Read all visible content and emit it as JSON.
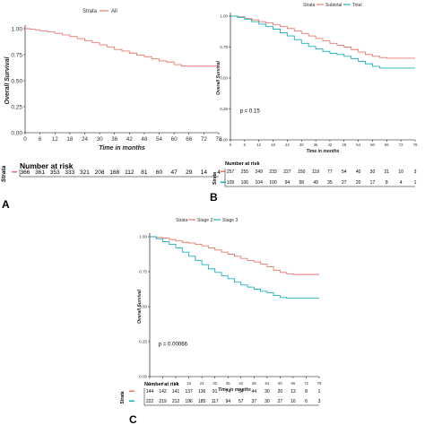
{
  "chart_data": [
    {
      "type": "line",
      "panel_label": "A",
      "ylabel": "Overall Survival",
      "xlabel": "Time in months",
      "legend_title": "Strata",
      "legend_placement": "top",
      "x_ticks": [
        0,
        6,
        12,
        18,
        24,
        30,
        36,
        42,
        48,
        54,
        60,
        66,
        72,
        78
      ],
      "y_ticks": [
        "0.00",
        "0.25",
        "0.50",
        "0.75",
        "1.00"
      ],
      "xlim": [
        0,
        78
      ],
      "ylim": [
        0,
        1
      ],
      "grid": false,
      "series": [
        {
          "name": "All",
          "color": "#e8776f",
          "points": [
            [
              0,
              1.0
            ],
            [
              2,
              0.995
            ],
            [
              4,
              0.99
            ],
            [
              6,
              0.98
            ],
            [
              9,
              0.97
            ],
            [
              12,
              0.955
            ],
            [
              15,
              0.94
            ],
            [
              18,
              0.925
            ],
            [
              21,
              0.905
            ],
            [
              24,
              0.885
            ],
            [
              27,
              0.865
            ],
            [
              30,
              0.845
            ],
            [
              33,
              0.825
            ],
            [
              36,
              0.8
            ],
            [
              39,
              0.785
            ],
            [
              42,
              0.765
            ],
            [
              45,
              0.745
            ],
            [
              48,
              0.73
            ],
            [
              51,
              0.71
            ],
            [
              54,
              0.69
            ],
            [
              57,
              0.68
            ],
            [
              60,
              0.655
            ],
            [
              63,
              0.64
            ],
            [
              66,
              0.64
            ],
            [
              72,
              0.64
            ],
            [
              78,
              0.64
            ]
          ]
        }
      ],
      "risk_table": {
        "title": "Number at risk",
        "strata_label": "Strata",
        "rows": [
          {
            "color": "#e8776f",
            "values": [
              "366",
              "361",
              "353",
              "333",
              "321",
              "208",
              "168",
              "112",
              "81",
              "60",
              "47",
              "29",
              "14",
              "4"
            ]
          }
        ]
      }
    },
    {
      "type": "line",
      "panel_label": "B",
      "ylabel": "Overall Survival",
      "xlabel": "Time in months",
      "legend_title": "Strata",
      "legend_placement": "top",
      "annotation": "p = 0.15",
      "x_ticks": [
        0,
        6,
        12,
        18,
        24,
        30,
        36,
        42,
        48,
        54,
        60,
        66,
        72,
        78
      ],
      "y_ticks": [
        "0.00",
        "0.25",
        "0.50",
        "0.75",
        "1.00"
      ],
      "xlim": [
        0,
        78
      ],
      "ylim": [
        0,
        1
      ],
      "grid": false,
      "series": [
        {
          "name": "Subtotal",
          "color": "#e8776f",
          "points": [
            [
              0,
              1.0
            ],
            [
              3,
              0.995
            ],
            [
              6,
              0.98
            ],
            [
              9,
              0.97
            ],
            [
              12,
              0.955
            ],
            [
              15,
              0.945
            ],
            [
              18,
              0.93
            ],
            [
              21,
              0.915
            ],
            [
              24,
              0.9
            ],
            [
              27,
              0.88
            ],
            [
              30,
              0.86
            ],
            [
              33,
              0.84
            ],
            [
              36,
              0.82
            ],
            [
              39,
              0.8
            ],
            [
              42,
              0.78
            ],
            [
              45,
              0.765
            ],
            [
              48,
              0.75
            ],
            [
              51,
              0.73
            ],
            [
              54,
              0.71
            ],
            [
              57,
              0.69
            ],
            [
              60,
              0.675
            ],
            [
              63,
              0.665
            ],
            [
              66,
              0.66
            ],
            [
              72,
              0.66
            ],
            [
              78,
              0.66
            ]
          ]
        },
        {
          "name": "Total",
          "color": "#1cb0b8",
          "points": [
            [
              0,
              1.0
            ],
            [
              3,
              0.99
            ],
            [
              6,
              0.975
            ],
            [
              9,
              0.955
            ],
            [
              12,
              0.935
            ],
            [
              15,
              0.915
            ],
            [
              18,
              0.895
            ],
            [
              21,
              0.865
            ],
            [
              24,
              0.84
            ],
            [
              27,
              0.81
            ],
            [
              30,
              0.78
            ],
            [
              33,
              0.755
            ],
            [
              36,
              0.735
            ],
            [
              39,
              0.715
            ],
            [
              42,
              0.7
            ],
            [
              45,
              0.69
            ],
            [
              48,
              0.675
            ],
            [
              51,
              0.655
            ],
            [
              54,
              0.635
            ],
            [
              57,
              0.615
            ],
            [
              60,
              0.595
            ],
            [
              63,
              0.58
            ],
            [
              66,
              0.58
            ],
            [
              72,
              0.58
            ],
            [
              78,
              0.58
            ]
          ]
        }
      ],
      "risk_table": {
        "title": "Number at risk",
        "strata_label": "Strata",
        "rows": [
          {
            "color": "#e8776f",
            "values": [
              "257",
              "255",
              "249",
              "233",
              "227",
              "150",
              "119",
              "77",
              "54",
              "40",
              "30",
              "21",
              "10",
              "3"
            ]
          },
          {
            "color": "#1cb0b8",
            "values": [
              "109",
              "106",
              "104",
              "100",
              "94",
              "58",
              "49",
              "35",
              "27",
              "20",
              "17",
              "8",
              "4",
              "1"
            ]
          }
        ]
      }
    },
    {
      "type": "line",
      "panel_label": "C",
      "ylabel": "Overall Survival",
      "xlabel": "Time in months",
      "legend_title": "Strata",
      "legend_placement": "top",
      "annotation": "p = 0.00066",
      "x_ticks": [
        0,
        6,
        12,
        18,
        24,
        30,
        36,
        42,
        48,
        54,
        60,
        66,
        72,
        78
      ],
      "y_ticks": [
        "0.00",
        "0.25",
        "0.50",
        "0.75",
        "1.00"
      ],
      "xlim": [
        0,
        78
      ],
      "ylim": [
        0,
        1
      ],
      "grid": false,
      "series": [
        {
          "name": "Stage 2",
          "color": "#e8776f",
          "points": [
            [
              0,
              1.0
            ],
            [
              3,
              0.995
            ],
            [
              6,
              0.99
            ],
            [
              9,
              0.98
            ],
            [
              12,
              0.97
            ],
            [
              15,
              0.96
            ],
            [
              18,
              0.955
            ],
            [
              21,
              0.945
            ],
            [
              24,
              0.935
            ],
            [
              27,
              0.92
            ],
            [
              30,
              0.905
            ],
            [
              33,
              0.89
            ],
            [
              36,
              0.875
            ],
            [
              39,
              0.86
            ],
            [
              42,
              0.845
            ],
            [
              45,
              0.83
            ],
            [
              48,
              0.82
            ],
            [
              51,
              0.805
            ],
            [
              54,
              0.785
            ],
            [
              57,
              0.76
            ],
            [
              60,
              0.745
            ],
            [
              63,
              0.735
            ],
            [
              66,
              0.73
            ],
            [
              72,
              0.73
            ],
            [
              78,
              0.73
            ]
          ]
        },
        {
          "name": "Stage 3",
          "color": "#1cb0b8",
          "points": [
            [
              0,
              1.0
            ],
            [
              3,
              0.985
            ],
            [
              6,
              0.965
            ],
            [
              9,
              0.945
            ],
            [
              12,
              0.92
            ],
            [
              15,
              0.89
            ],
            [
              18,
              0.86
            ],
            [
              21,
              0.83
            ],
            [
              24,
              0.8
            ],
            [
              27,
              0.77
            ],
            [
              30,
              0.745
            ],
            [
              33,
              0.72
            ],
            [
              36,
              0.7
            ],
            [
              39,
              0.675
            ],
            [
              42,
              0.655
            ],
            [
              45,
              0.64
            ],
            [
              48,
              0.625
            ],
            [
              51,
              0.61
            ],
            [
              54,
              0.6
            ],
            [
              57,
              0.58
            ],
            [
              60,
              0.565
            ],
            [
              63,
              0.56
            ],
            [
              66,
              0.56
            ],
            [
              72,
              0.56
            ],
            [
              78,
              0.56
            ]
          ]
        }
      ],
      "risk_table": {
        "title": "Number at risk",
        "strata_label": "Strata",
        "rows": [
          {
            "color": "#e8776f",
            "values": [
              "144",
              "142",
              "141",
              "137",
              "136",
              "91",
              "74",
              "54",
              "44",
              "30",
              "20",
              "13",
              "8",
              "1"
            ]
          },
          {
            "color": "#1cb0b8",
            "values": [
              "222",
              "219",
              "212",
              "196",
              "185",
              "117",
              "94",
              "57",
              "37",
              "30",
              "27",
              "16",
              "6",
              "3"
            ]
          }
        ]
      }
    }
  ]
}
